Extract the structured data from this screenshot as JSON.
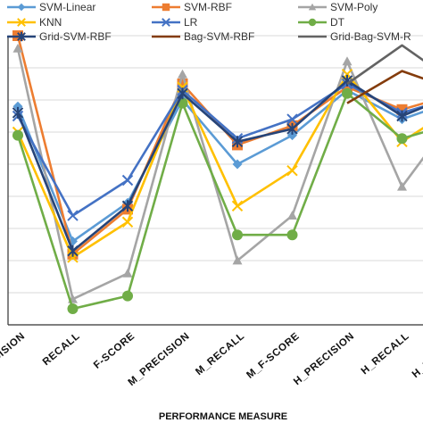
{
  "chart_data": {
    "type": "line",
    "xlabel": "PERFORMANCE MEASURE",
    "ylabel": "",
    "categories": [
      "PRECISION",
      "RECALL",
      "F-SCORE",
      "M_PRECISION",
      "M_RECALL",
      "M_F-SCORE",
      "H_PRECISION",
      "H_RECALL",
      "H_F-SCORE"
    ],
    "ylim": [
      0,
      9
    ],
    "grid": true,
    "legend_position": "top",
    "series": [
      {
        "name": "SVM-Linear",
        "color": "#5b9bd5",
        "marker": "diamond",
        "values": [
          6.8,
          2.6,
          3.8,
          7.0,
          5.0,
          5.9,
          7.3,
          6.4,
          7.0
        ]
      },
      {
        "name": "SVM-RBF",
        "color": "#ed7d31",
        "marker": "square",
        "values": [
          9.0,
          2.2,
          3.6,
          7.5,
          5.6,
          6.2,
          7.4,
          6.7,
          7.2
        ]
      },
      {
        "name": "SVM-Poly",
        "color": "#a5a5a5",
        "marker": "triangle",
        "values": [
          8.6,
          0.8,
          1.6,
          7.8,
          2.0,
          3.4,
          8.2,
          4.3,
          6.6
        ]
      },
      {
        "name": "KNN",
        "color": "#ffc000",
        "marker": "x",
        "values": [
          6.0,
          2.1,
          3.2,
          7.4,
          3.7,
          4.8,
          7.8,
          5.7,
          6.8
        ]
      },
      {
        "name": "LR",
        "color": "#4472c4",
        "marker": "x",
        "values": [
          6.5,
          3.4,
          4.5,
          7.3,
          5.8,
          6.4,
          7.5,
          6.6,
          7.1
        ]
      },
      {
        "name": "DT",
        "color": "#70ad47",
        "marker": "circle",
        "values": [
          5.9,
          0.5,
          0.9,
          6.9,
          2.8,
          2.8,
          7.2,
          5.8,
          6.3
        ]
      },
      {
        "name": "Grid-SVM-RBF",
        "color": "#264478",
        "marker": "star",
        "values": [
          6.6,
          2.3,
          3.7,
          7.2,
          5.7,
          6.1,
          7.6,
          6.5,
          7.2
        ]
      },
      {
        "name": "Bag-SVM-RBF",
        "color": "#843c0c",
        "marker": "none",
        "values": [
          null,
          null,
          null,
          null,
          null,
          null,
          6.9,
          7.9,
          7.3
        ]
      },
      {
        "name": "Grid-Bag-SVM-RBF",
        "color": "#636363",
        "marker": "none",
        "values": [
          null,
          null,
          null,
          null,
          null,
          null,
          7.5,
          8.7,
          7.5
        ]
      }
    ]
  },
  "legend": {
    "labels": [
      "SVM-Linear",
      "SVM-RBF",
      "SVM-Poly",
      "KNN",
      "LR",
      "DT",
      "Grid-SVM-RBF",
      "Bag-SVM-RBF",
      "Grid-Bag-SVM-R"
    ]
  }
}
